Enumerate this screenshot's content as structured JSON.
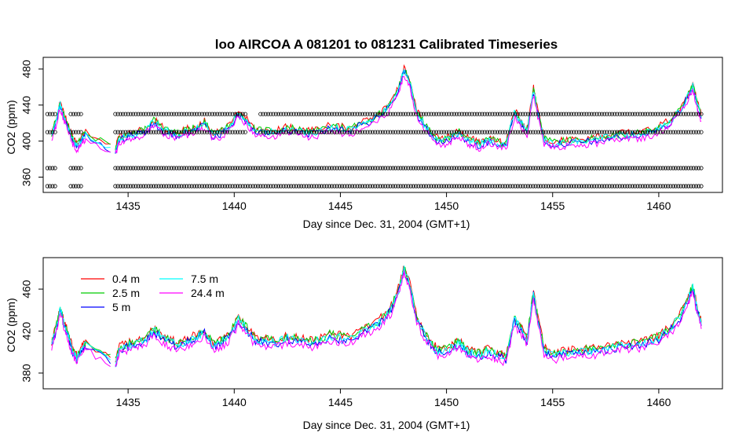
{
  "chart_data": [
    {
      "type": "line",
      "title": "loo   AIRCOA  A    081201  to  081231   Calibrated Timeseries",
      "xlabel": "Day since Dec. 31, 2004 (GMT+1)",
      "ylabel": "CO2 (ppm)",
      "xlim": [
        1431,
        1463
      ],
      "ylim": [
        343,
        493
      ],
      "x_ticks": [
        1435,
        1440,
        1445,
        1450,
        1455,
        1460
      ],
      "y_ticks": [
        360,
        400,
        440,
        480
      ],
      "series_colors": [
        "#ff0000",
        "#00cc00",
        "#0000ff",
        "#00ffff",
        "#ff00ff"
      ],
      "calibration_points": {
        "levels": [
          350,
          370,
          410,
          430
        ],
        "segments": [
          [
            1431.2,
            1431.6
          ],
          [
            1432.3,
            1432.8
          ],
          [
            1434.4,
            1462.0
          ]
        ]
      },
      "base_series": {
        "x": [
          1431.4,
          1431.6,
          1431.8,
          1432.0,
          1432.2,
          1432.4,
          1432.6,
          1432.8,
          1433.0,
          1434.4,
          1434.6,
          1435.0,
          1435.4,
          1435.8,
          1436.2,
          1436.6,
          1437.0,
          1437.4,
          1437.8,
          1438.2,
          1438.6,
          1439.0,
          1439.4,
          1439.8,
          1440.2,
          1440.6,
          1441.0,
          1441.5,
          1442.0,
          1442.5,
          1443.0,
          1443.5,
          1444.0,
          1444.5,
          1445.0,
          1445.5,
          1446.0,
          1446.5,
          1447.0,
          1447.4,
          1447.8,
          1448.0,
          1448.3,
          1448.6,
          1449.0,
          1449.4,
          1449.8,
          1450.2,
          1450.6,
          1450.9,
          1451.2,
          1451.6,
          1452.0,
          1452.4,
          1452.8,
          1453.2,
          1453.5,
          1453.8,
          1454.1,
          1454.3,
          1454.6,
          1455.0,
          1455.5,
          1456.0,
          1456.5,
          1457.0,
          1457.5,
          1458.0,
          1458.5,
          1459.0,
          1459.5,
          1460.0,
          1460.5,
          1461.0,
          1461.4,
          1461.6,
          1461.8,
          1462.0
        ],
        "y": [
          405,
          420,
          440,
          425,
          412,
          400,
          393,
          400,
          406,
          388,
          402,
          405,
          407,
          410,
          420,
          412,
          408,
          405,
          410,
          412,
          418,
          405,
          408,
          415,
          430,
          420,
          410,
          409,
          408,
          412,
          410,
          408,
          409,
          414,
          412,
          411,
          418,
          422,
          430,
          440,
          460,
          478,
          460,
          430,
          415,
          402,
          398,
          402,
          408,
          400,
          398,
          395,
          400,
          396,
          393,
          430,
          420,
          410,
          455,
          430,
          400,
          396,
          397,
          398,
          399,
          400,
          402,
          404,
          405,
          406,
          408,
          412,
          420,
          432,
          450,
          460,
          440,
          425
        ]
      },
      "legend": {
        "entries": [
          "0.4 m",
          "2.5 m",
          "5 m",
          "7.5 m",
          "24.4 m"
        ]
      }
    },
    {
      "type": "line",
      "xlabel": "Day since Dec. 31, 2004 (GMT+1)",
      "ylabel": "CO2 (ppm)",
      "xlim": [
        1431,
        1463
      ],
      "ylim": [
        365,
        490
      ],
      "x_ticks": [
        1435,
        1440,
        1445,
        1450,
        1455,
        1460
      ],
      "y_ticks": [
        380,
        420,
        460
      ],
      "legend_position": "top-left",
      "series": [
        {
          "name": "0.4 m",
          "color": "#ff0000"
        },
        {
          "name": "2.5 m",
          "color": "#00cc00"
        },
        {
          "name": "5 m",
          "color": "#0000ff"
        },
        {
          "name": "7.5 m",
          "color": "#00ffff"
        },
        {
          "name": "24.4 m",
          "color": "#ff00ff"
        }
      ]
    }
  ]
}
